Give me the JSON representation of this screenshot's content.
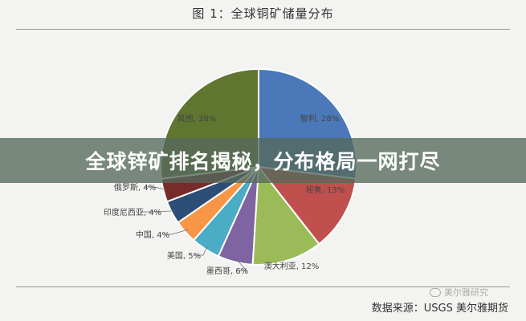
{
  "title": "图 1：全球铜矿储量分布",
  "banner": "全球锌矿排名揭秘，分布格局一网打尽",
  "source": "数据来源：USGS  美尔雅期货",
  "watermark": "美尔雅研究",
  "chart_data": {
    "type": "pie",
    "title": "图 1：全球铜矿储量分布",
    "unit": "%",
    "slices": [
      {
        "name": "智利",
        "value": 28,
        "label": "智利, 28%",
        "color": "#4a78b8"
      },
      {
        "name": "秘鲁",
        "value": 13,
        "label": "秘鲁, 13%",
        "color": "#c0504d"
      },
      {
        "name": "澳大利亚",
        "value": 12,
        "label": "澳大利亚, 12%",
        "color": "#9bbb59"
      },
      {
        "name": "墨西哥",
        "value": 6,
        "label": "墨西哥, 6%",
        "color": "#7e64a0"
      },
      {
        "name": "美国",
        "value": 5,
        "label": "美国, 5%",
        "color": "#4bacc6"
      },
      {
        "name": "中国",
        "value": 4,
        "label": "中国, 4%",
        "color": "#f79646"
      },
      {
        "name": "印度尼西亚",
        "value": 4,
        "label": "印度尼西亚, 4%",
        "color": "#2c4d75"
      },
      {
        "name": "俄罗斯",
        "value": 4,
        "label": "俄罗斯, 4%",
        "color": "#772c2a"
      },
      {
        "name": "其他",
        "value": 28,
        "label": "其他, 28%",
        "color": "#5f7530"
      }
    ]
  }
}
